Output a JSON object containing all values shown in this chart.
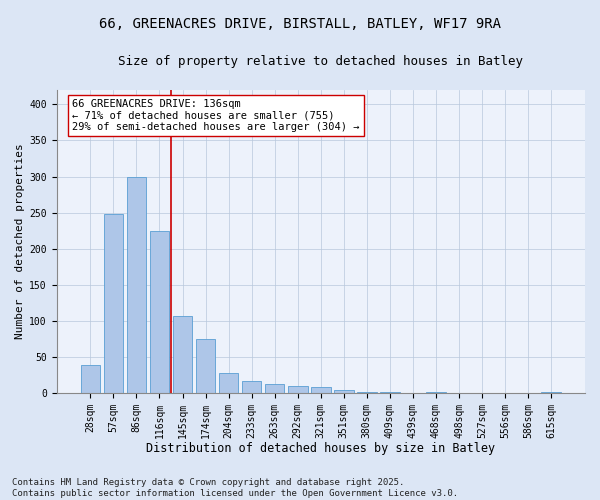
{
  "title_line1": "66, GREENACRES DRIVE, BIRSTALL, BATLEY, WF17 9RA",
  "title_line2": "Size of property relative to detached houses in Batley",
  "xlabel": "Distribution of detached houses by size in Batley",
  "ylabel": "Number of detached properties",
  "categories": [
    "28sqm",
    "57sqm",
    "86sqm",
    "116sqm",
    "145sqm",
    "174sqm",
    "204sqm",
    "233sqm",
    "263sqm",
    "292sqm",
    "321sqm",
    "351sqm",
    "380sqm",
    "409sqm",
    "439sqm",
    "468sqm",
    "498sqm",
    "527sqm",
    "556sqm",
    "586sqm",
    "615sqm"
  ],
  "values": [
    38,
    248,
    300,
    224,
    106,
    75,
    27,
    17,
    12,
    10,
    8,
    4,
    1,
    1,
    0,
    1,
    0,
    0,
    0,
    0,
    1
  ],
  "bar_color": "#aec6e8",
  "bar_edgecolor": "#5a9fd4",
  "vline_x": 3.5,
  "vline_color": "#cc0000",
  "annotation_text": "66 GREENACRES DRIVE: 136sqm\n← 71% of detached houses are smaller (755)\n29% of semi-detached houses are larger (304) →",
  "annotation_box_color": "#ffffff",
  "annotation_box_edgecolor": "#cc0000",
  "ylim": [
    0,
    420
  ],
  "yticks": [
    0,
    50,
    100,
    150,
    200,
    250,
    300,
    350,
    400
  ],
  "background_color": "#dce6f5",
  "plot_background": "#edf2fb",
  "footer": "Contains HM Land Registry data © Crown copyright and database right 2025.\nContains public sector information licensed under the Open Government Licence v3.0.",
  "title_fontsize": 10,
  "subtitle_fontsize": 9,
  "xlabel_fontsize": 8.5,
  "ylabel_fontsize": 8,
  "tick_fontsize": 7,
  "footer_fontsize": 6.5,
  "annotation_fontsize": 7.5
}
